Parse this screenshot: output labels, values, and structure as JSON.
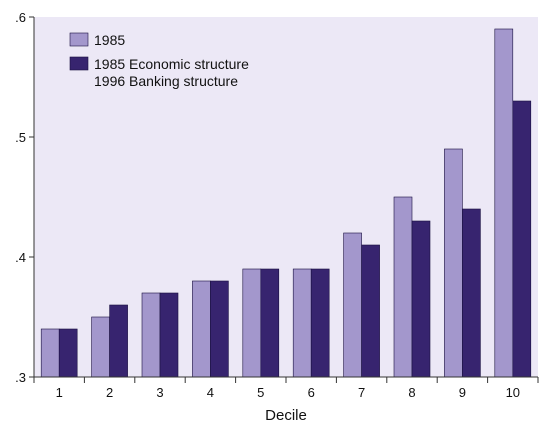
{
  "colors": {
    "plot_bg": "#ece8f6",
    "series_1985": "#a397cc",
    "series_alt": "#37246f",
    "axis": "#333333"
  },
  "chart_data": {
    "type": "bar",
    "title": "",
    "xlabel": "Decile",
    "ylabel": "",
    "ylim": [
      0.3,
      0.6
    ],
    "yticks": [
      0.3,
      0.4,
      0.5,
      0.6
    ],
    "ytick_labels": [
      ".3",
      ".4",
      ".5",
      ".6"
    ],
    "categories": [
      "1",
      "2",
      "3",
      "4",
      "5",
      "6",
      "7",
      "8",
      "9",
      "10"
    ],
    "series": [
      {
        "name": "1985",
        "color": "#a397cc",
        "values": [
          0.34,
          0.35,
          0.37,
          0.38,
          0.39,
          0.39,
          0.42,
          0.45,
          0.49,
          0.59
        ]
      },
      {
        "name": "1985 Economic structure\n1996 Banking structure",
        "color": "#37246f",
        "values": [
          0.34,
          0.36,
          0.37,
          0.38,
          0.39,
          0.39,
          0.41,
          0.43,
          0.44,
          0.53
        ]
      }
    ],
    "legend": {
      "placement": "top-left",
      "entries": [
        {
          "lines": [
            "1985"
          ]
        },
        {
          "lines": [
            "1985 Economic structure",
            "1996 Banking structure"
          ]
        }
      ]
    },
    "grid": false
  }
}
